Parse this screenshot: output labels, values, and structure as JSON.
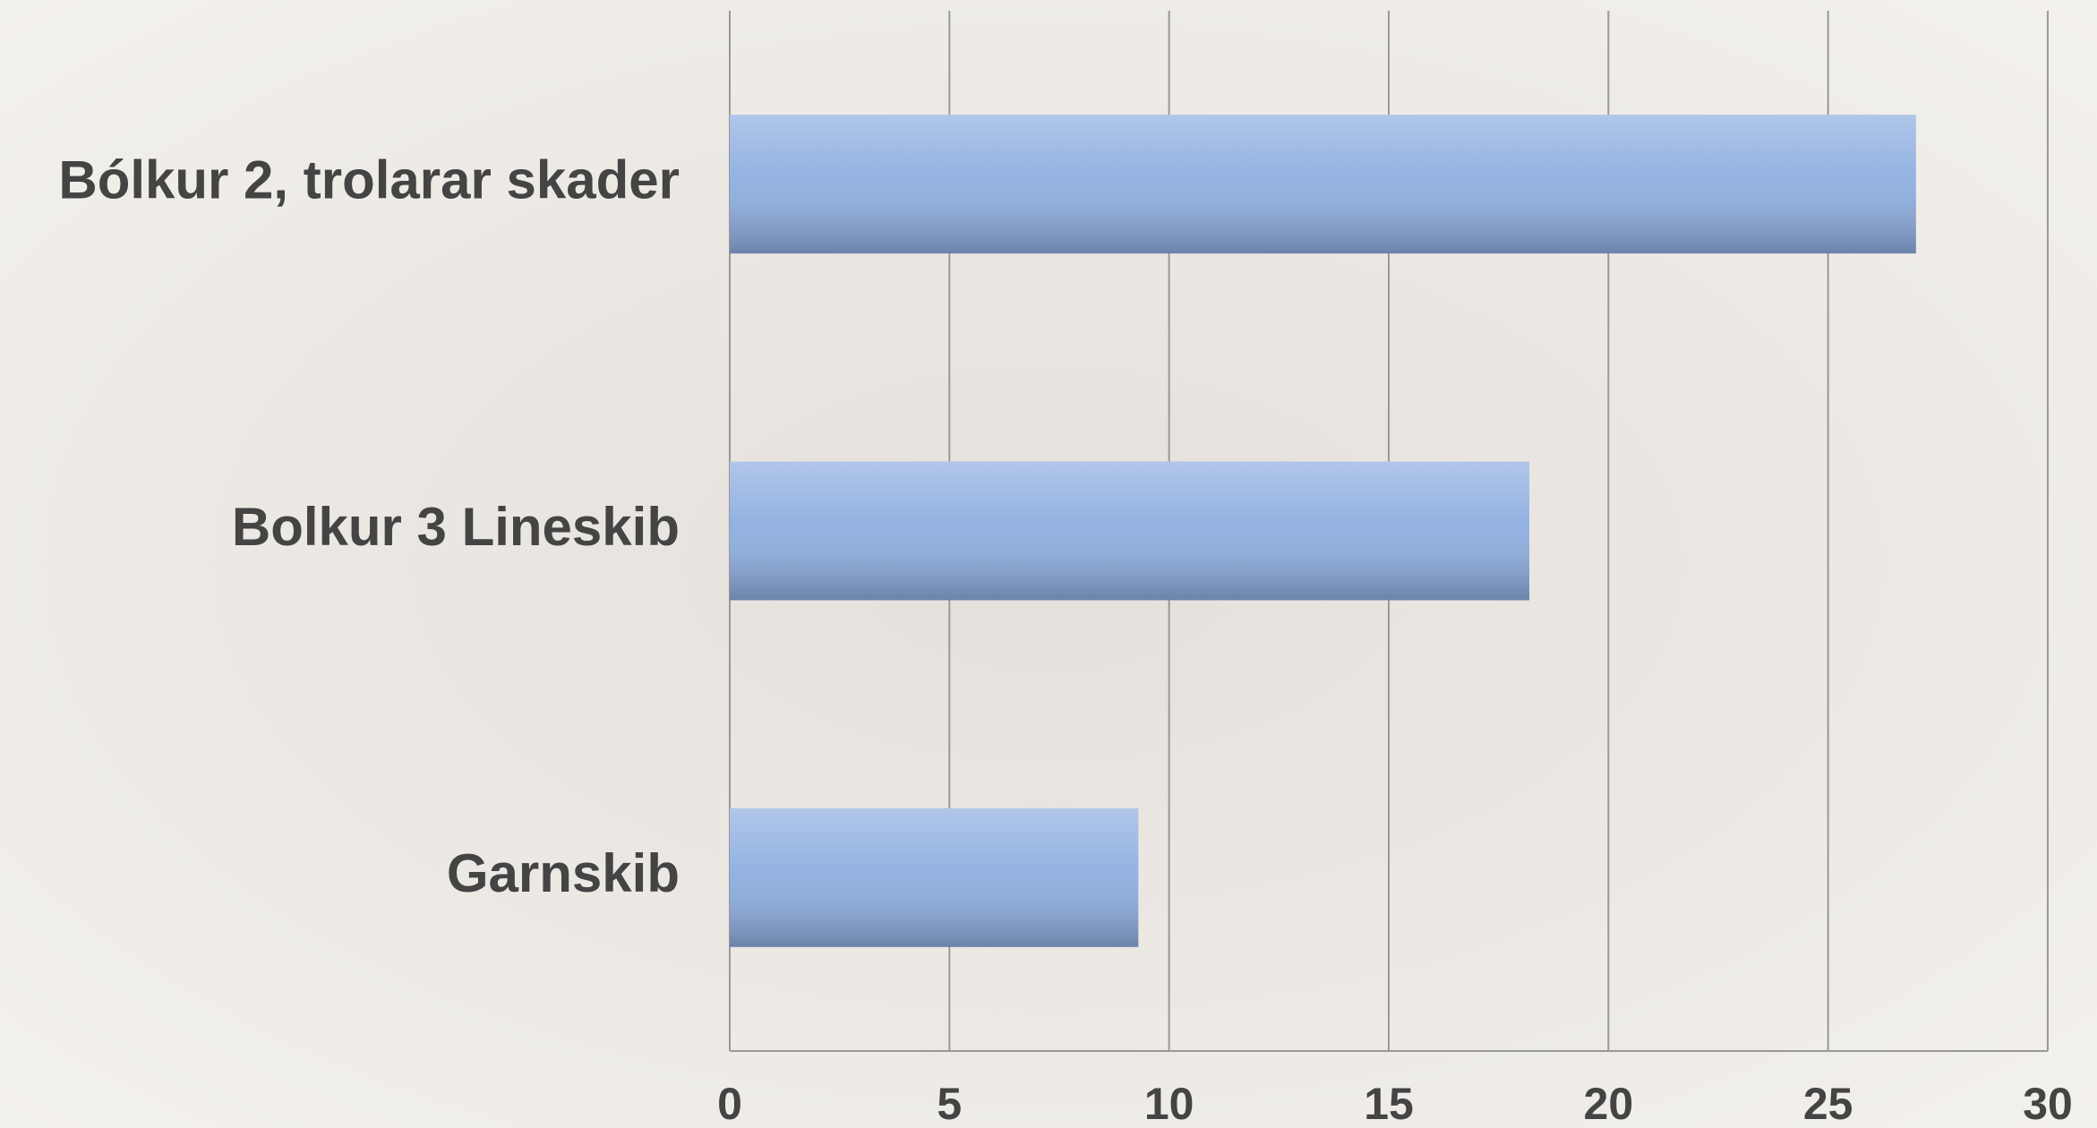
{
  "chart_data": {
    "type": "bar",
    "orientation": "horizontal",
    "categories": [
      "Bólkur 2, trolarar skader",
      "Bolkur 3 Lineskib",
      "Garnskib"
    ],
    "values": [
      27,
      18.2,
      9.3
    ],
    "color": "#8eaee0",
    "xlim": [
      0,
      30
    ],
    "xticks": [
      0,
      5,
      10,
      15,
      20,
      25,
      30
    ],
    "grid": true
  }
}
